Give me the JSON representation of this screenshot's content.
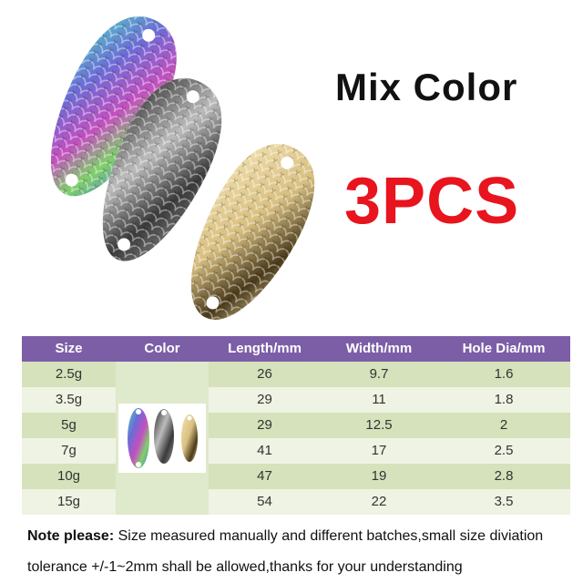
{
  "title": "Mix  Color",
  "quantity": "3PCS",
  "colors": {
    "header": "#7c5ea7",
    "row_dark": "#d5e2bb",
    "row_light": "#eef3e3",
    "quantity": "#e8141e"
  },
  "table": {
    "headers": [
      "Size",
      "Color",
      "Length/mm",
      "Width/mm",
      "Hole Dia/mm"
    ],
    "rows": [
      [
        "2.5g",
        "26",
        "9.7",
        "1.6"
      ],
      [
        "3.5g",
        "29",
        "11",
        "1.8"
      ],
      [
        "5g",
        "29",
        "12.5",
        "2"
      ],
      [
        "7g",
        "41",
        "17",
        "2.5"
      ],
      [
        "10g",
        "47",
        "19",
        "2.8"
      ],
      [
        "15g",
        "54",
        "22",
        "3.5"
      ]
    ]
  },
  "note": {
    "label": "Note please:",
    "text": " Size measured manually and different batches,small size diviation tolerance +/-1~2mm shall be allowed,thanks for your understanding"
  }
}
